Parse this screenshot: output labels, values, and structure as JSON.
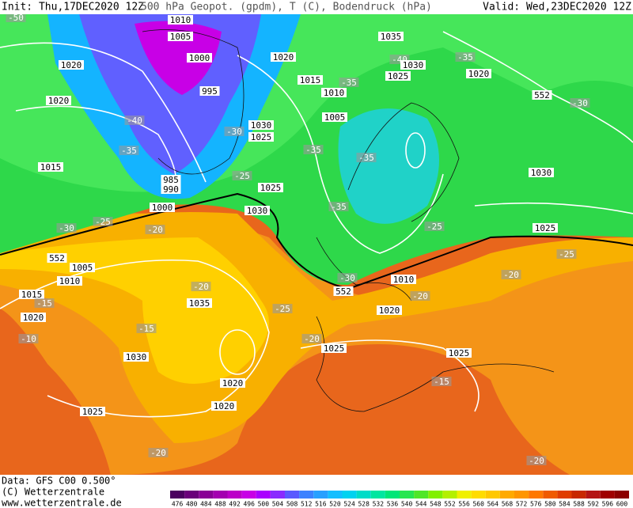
{
  "header": {
    "init": "Init: Thu,17DEC2020 12Z",
    "title": "500 hPa Geopot. (gpdm), T (C), Bodendruck (hPa)",
    "valid": "Valid: Wed,23DEC2020 12Z"
  },
  "footer": {
    "data": "Data: GFS C00 0.500°",
    "copyright": "(C) Wetterzentrale",
    "url": "www.wetterzentrale.de"
  },
  "map": {
    "labels": [
      "-50",
      "1010",
      "1005",
      "1000",
      "1020",
      "1020",
      "1035",
      "-40",
      "1030",
      "-35",
      "1020",
      "1025",
      "1015",
      "-35",
      "1010",
      "995",
      "552",
      "-30",
      "1020",
      "-40",
      "1005",
      "1030",
      "1025",
      "-30",
      "-35",
      "-35",
      "-35",
      "1015",
      "985",
      "990",
      "1030",
      "1025",
      "1000",
      "-25",
      "1030",
      "-35",
      "-30",
      "-25",
      "-20",
      "-25",
      "1025",
      "552",
      "1005",
      "-25",
      "1010",
      "-20",
      "-30",
      "552",
      "1010",
      "-20",
      "1015",
      "-15",
      "1035",
      "-20",
      "-25",
      "1020",
      "1020",
      "-15",
      "-10",
      "-20",
      "1025",
      "1030",
      "1025",
      "1020",
      "-15",
      "1025",
      "1020",
      "-20",
      "-20"
    ]
  },
  "scale": {
    "labels": [
      "476",
      "480",
      "484",
      "488",
      "492",
      "496",
      "500",
      "504",
      "508",
      "512",
      "516",
      "520",
      "524",
      "528",
      "532",
      "536",
      "540",
      "544",
      "548",
      "552",
      "556",
      "560",
      "564",
      "568",
      "572",
      "576",
      "580",
      "584",
      "588",
      "592",
      "596",
      "600"
    ],
    "colors": [
      "#4b0060",
      "#6a007a",
      "#8a0096",
      "#a400b0",
      "#bc00c8",
      "#c800e6",
      "#aa00ff",
      "#8a2bff",
      "#5a5aff",
      "#3c82ff",
      "#28a0ff",
      "#14beff",
      "#00d2f0",
      "#00dcc8",
      "#00e6a0",
      "#00e678",
      "#28e650",
      "#50e628",
      "#82f000",
      "#b4f000",
      "#f0f000",
      "#ffdc00",
      "#ffc800",
      "#ffaa00",
      "#ff9600",
      "#ff7800",
      "#f05a00",
      "#e03c00",
      "#c82800",
      "#b41414",
      "#a00000",
      "#8c0000"
    ]
  }
}
